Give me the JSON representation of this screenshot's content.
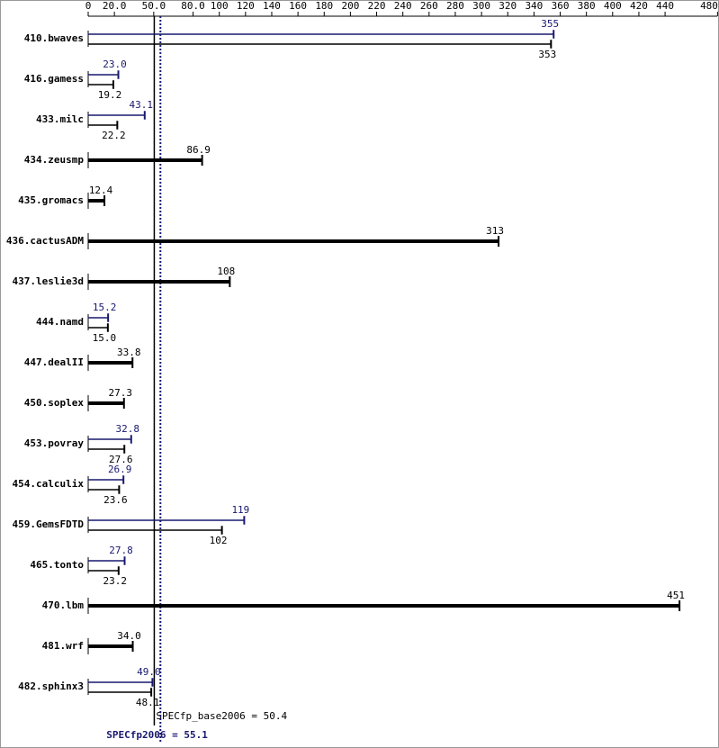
{
  "chart_data": {
    "type": "bar",
    "categories": [
      "410.bwaves",
      "416.gamess",
      "433.milc",
      "434.zeusmp",
      "435.gromacs",
      "436.cactusADM",
      "437.leslie3d",
      "444.namd",
      "447.dealII",
      "450.soplex",
      "453.povray",
      "454.calculix",
      "459.GemsFDTD",
      "465.tonto",
      "470.lbm",
      "481.wrf",
      "482.sphinx3"
    ],
    "series": [
      {
        "color": "#191970",
        "values": [
          355,
          23.0,
          43.1,
          null,
          null,
          null,
          null,
          15.2,
          null,
          null,
          32.8,
          26.9,
          119,
          27.8,
          null,
          null,
          49.0
        ],
        "value_labels": [
          "355",
          "23.0",
          "43.1",
          null,
          null,
          null,
          null,
          "15.2",
          null,
          null,
          "32.8",
          "26.9",
          "119",
          "27.8",
          null,
          null,
          "49.0"
        ]
      },
      {
        "color": "#000000",
        "values": [
          353,
          19.2,
          22.2,
          86.9,
          12.4,
          313,
          108,
          15.0,
          33.8,
          27.3,
          27.6,
          23.6,
          102,
          23.2,
          451,
          34.0,
          48.1
        ],
        "value_labels": [
          "353",
          "19.2",
          "22.2",
          "86.9",
          "12.4",
          "313",
          "108",
          "15.0",
          "33.8",
          "27.3",
          "27.6",
          "23.6",
          "102",
          "23.2",
          "451",
          "34.0",
          "48.1"
        ]
      }
    ],
    "xlim": [
      0,
      480
    ],
    "xticks": [
      0,
      {
        "value": 20,
        "label": "20.0"
      },
      {
        "value": 50,
        "label": "50.0"
      },
      {
        "value": 80,
        "label": "80.0"
      },
      100,
      120,
      140,
      160,
      180,
      200,
      220,
      240,
      260,
      280,
      300,
      320,
      340,
      360,
      380,
      400,
      420,
      440,
      480
    ],
    "reference_lines": [
      {
        "label": "SPECfp_base2006 = 50.4",
        "value": 50.4,
        "color": "#000000"
      },
      {
        "label": "SPECfp2006 = 55.1",
        "value": 55.1,
        "color": "#191970"
      }
    ]
  }
}
